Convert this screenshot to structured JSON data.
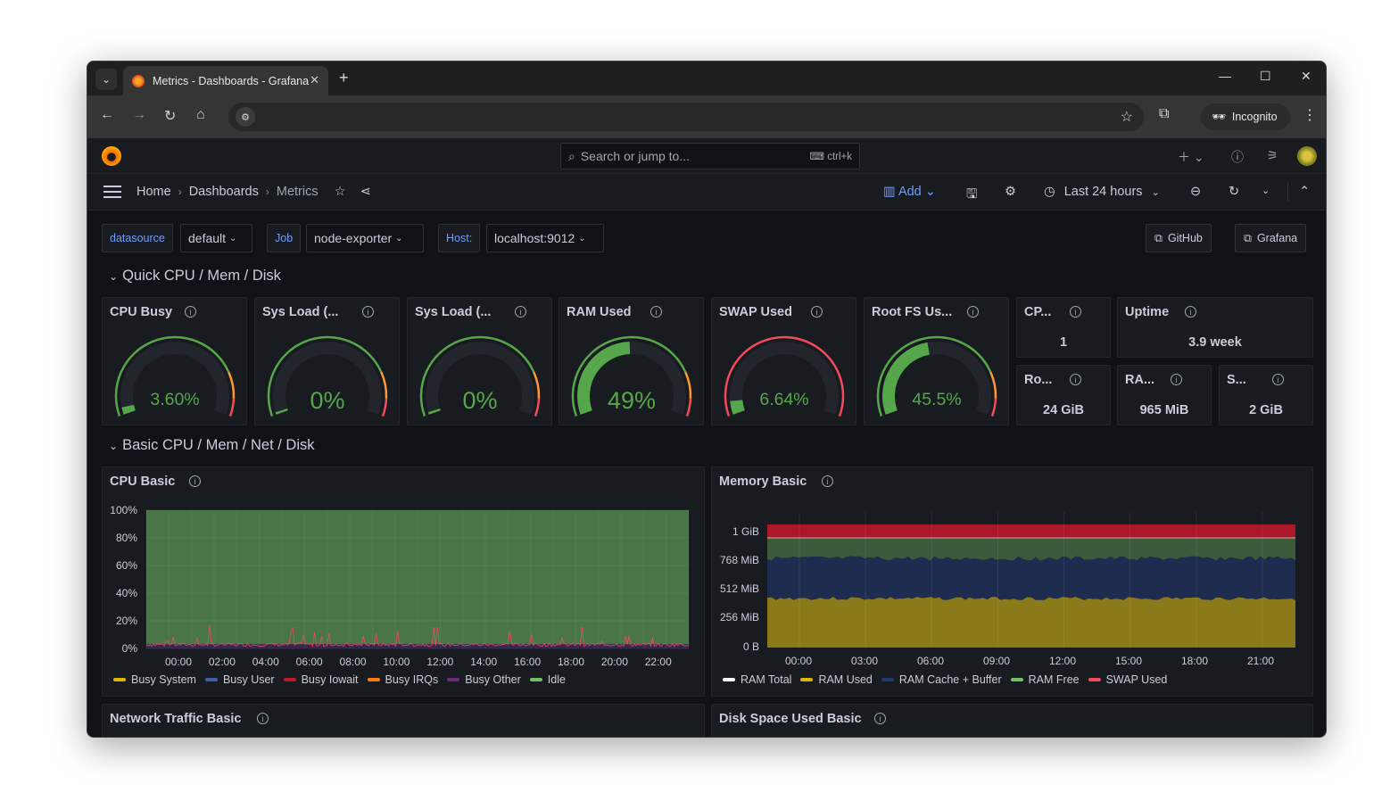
{
  "browser": {
    "tab_title": "Metrics - Dashboards - Grafana",
    "incognito_label": "Incognito"
  },
  "grafana": {
    "search_placeholder": "Search or jump to...",
    "search_shortcut": "ctrl+k",
    "breadcrumbs": [
      "Home",
      "Dashboards",
      "Metrics"
    ],
    "add_label": "Add",
    "time_range": "Last 24 hours"
  },
  "variables": {
    "datasource_label": "datasource",
    "datasource_value": "default",
    "job_label": "Job",
    "job_value": "node-exporter",
    "host_label": "Host:",
    "host_value": "localhost:9012"
  },
  "links": {
    "github": "GitHub",
    "grafana": "Grafana"
  },
  "rows": {
    "quick": "Quick CPU / Mem / Disk",
    "basic": "Basic CPU / Mem / Net / Disk"
  },
  "gauges": [
    {
      "title": "CPU Busy",
      "value_text": "3.60%",
      "fraction": 0.036,
      "thresholds": "green-orange"
    },
    {
      "title": "Sys Load (...",
      "value_text": "0%",
      "fraction": 0.0,
      "thresholds": "green-orange"
    },
    {
      "title": "Sys Load (...",
      "value_text": "0%",
      "fraction": 0.0,
      "thresholds": "green-orange"
    },
    {
      "title": "RAM Used",
      "value_text": "49%",
      "fraction": 0.49,
      "thresholds": "green-orange"
    },
    {
      "title": "SWAP Used",
      "value_text": "6.64%",
      "fraction": 0.0664,
      "thresholds": "red"
    },
    {
      "title": "Root FS Us...",
      "value_text": "45.5%",
      "fraction": 0.455,
      "thresholds": "green-orange"
    }
  ],
  "stats": [
    {
      "title": "CP...",
      "value": "1"
    },
    {
      "title": "Uptime",
      "value": "3.9 week"
    },
    {
      "title": "Ro...",
      "value": "24 GiB"
    },
    {
      "title": "RA...",
      "value": "965 MiB"
    },
    {
      "title": "S...",
      "value": "2 GiB"
    }
  ],
  "cpu_basic": {
    "title": "CPU Basic",
    "chart_data": {
      "type": "area",
      "y_ticks": [
        "100%",
        "80%",
        "60%",
        "40%",
        "20%",
        "0%"
      ],
      "x_ticks": [
        "00:00",
        "02:00",
        "04:00",
        "06:00",
        "08:00",
        "10:00",
        "12:00",
        "14:00",
        "16:00",
        "18:00",
        "20:00",
        "22:00"
      ],
      "ylim": [
        0,
        100
      ],
      "series": [
        {
          "name": "Busy System",
          "color": "#e0b400"
        },
        {
          "name": "Busy User",
          "color": "#3f5fa8"
        },
        {
          "name": "Busy Iowait",
          "color": "#c4162a"
        },
        {
          "name": "Busy IRQs",
          "color": "#ff780a"
        },
        {
          "name": "Busy Other",
          "color": "#6b2a7a"
        },
        {
          "name": "Idle",
          "color": "#73bf69"
        }
      ],
      "approx_idle_percent": 97
    }
  },
  "memory_basic": {
    "title": "Memory Basic",
    "chart_data": {
      "type": "area",
      "y_ticks": [
        "1 GiB",
        "768 MiB",
        "512 MiB",
        "256 MiB",
        "0 B"
      ],
      "x_ticks": [
        "00:00",
        "03:00",
        "06:00",
        "09:00",
        "12:00",
        "15:00",
        "18:00",
        "21:00"
      ],
      "series": [
        {
          "name": "RAM Total",
          "color": "#ffffff"
        },
        {
          "name": "RAM Used",
          "color": "#e0b400"
        },
        {
          "name": "RAM Cache + Buffer",
          "color": "#1f3a6e"
        },
        {
          "name": "RAM Free",
          "color": "#73bf69"
        },
        {
          "name": "SWAP Used",
          "color": "#f2495c"
        }
      ]
    }
  },
  "bottom_panels": {
    "network": "Network Traffic Basic",
    "disk": "Disk Space Used Basic"
  }
}
